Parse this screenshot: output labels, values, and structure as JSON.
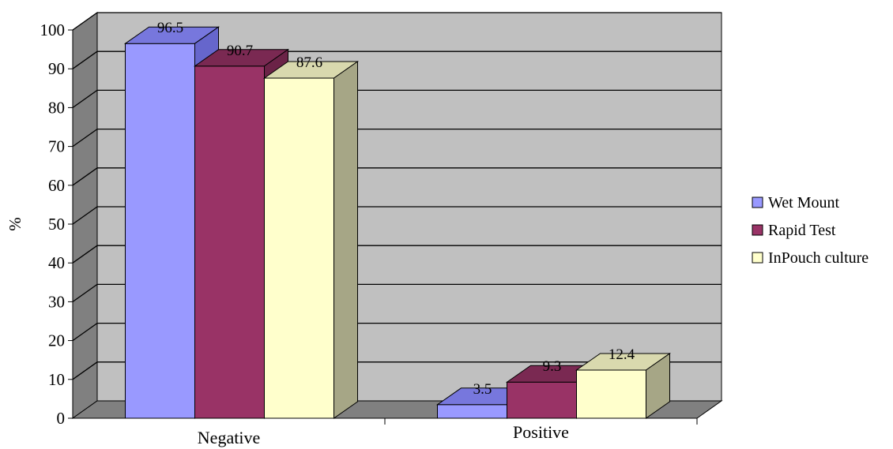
{
  "chart_data": {
    "type": "bar",
    "style": "3d-clustered-column",
    "categories": [
      "Negative",
      "Positive"
    ],
    "series": [
      {
        "name": "Wet Mount",
        "values": [
          96.5,
          3.5
        ],
        "color": "#9999FF",
        "side_color": "#6666CC",
        "top_color": "#7777DD"
      },
      {
        "name": "Rapid Test",
        "values": [
          90.7,
          9.3
        ],
        "color": "#993366",
        "side_color": "#6B2347",
        "top_color": "#7A2952"
      },
      {
        "name": "InPouch culture",
        "values": [
          87.6,
          12.4
        ],
        "color": "#FFFFCC",
        "side_color": "#A6A686",
        "top_color": "#D9D9AE"
      }
    ],
    "ylabel": "%",
    "xlabel": "",
    "ylim": [
      0,
      100
    ],
    "yticks": [
      0,
      10,
      20,
      30,
      40,
      50,
      60,
      70,
      80,
      90,
      100
    ],
    "grid": true,
    "legend_position": "right",
    "colors": {
      "wall": "#C0C0C0",
      "side_wall": "#808080",
      "floor": "#808080",
      "gridline": "#000000"
    }
  }
}
